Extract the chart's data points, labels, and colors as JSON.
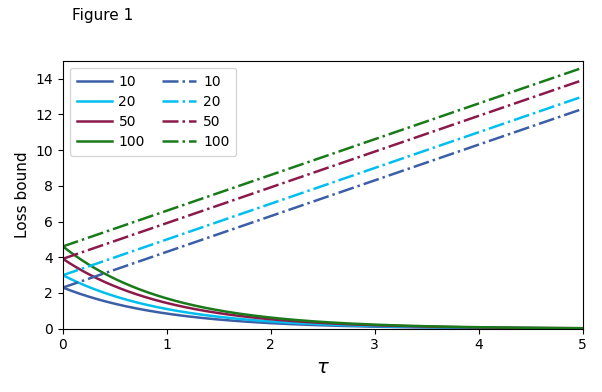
{
  "n_values": [
    10,
    20,
    50,
    100
  ],
  "colors": [
    "#3B5EA6",
    "#00BFEF",
    "#8B1A4A",
    "#1A7A1A"
  ],
  "tau_max": 5.0,
  "tau_points": 1000,
  "ylim": [
    0,
    15
  ],
  "yticks": [
    0,
    2,
    4,
    6,
    8,
    10,
    12,
    14
  ],
  "xticks": [
    0,
    1,
    2,
    3,
    4,
    5
  ],
  "xlabel": "$\\tau$",
  "ylabel": "Loss bound",
  "suptitle": "Figure 1",
  "legend_labels": [
    "10",
    "20",
    "50",
    "100"
  ],
  "linewidth": 1.8
}
